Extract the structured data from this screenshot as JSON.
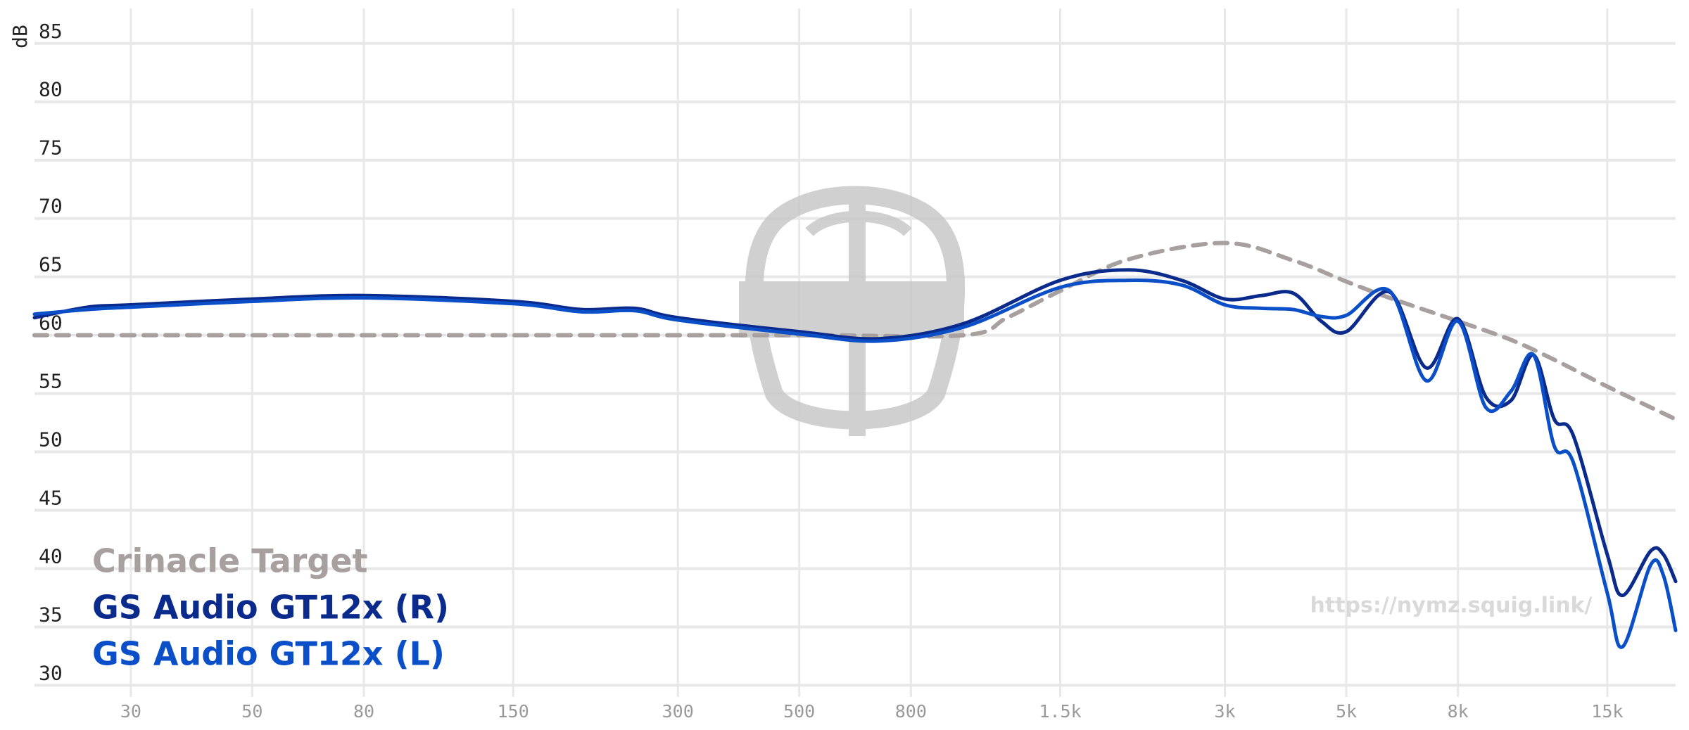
{
  "chart_data": {
    "type": "line",
    "y_label": "dB",
    "watermark": "https://nymz.squig.link/",
    "xscale": "log",
    "grid": true,
    "legend": "bottom-left",
    "xlim": [
      20,
      20000
    ],
    "ylim": [
      29,
      88
    ],
    "xticks": [
      30,
      50,
      80,
      150,
      300,
      500,
      800,
      {
        "value": 1500,
        "label": "1.5k"
      },
      {
        "value": 3000,
        "label": "3k"
      },
      {
        "value": 5000,
        "label": "5k"
      },
      {
        "value": 8000,
        "label": "8k"
      },
      {
        "value": 15000,
        "label": "15k"
      }
    ],
    "yticks": [
      30,
      35,
      40,
      45,
      50,
      55,
      60,
      65,
      70,
      75,
      80,
      85
    ],
    "series": [
      {
        "name": "Crinacle Target",
        "color": "#a89f9f",
        "dashed": true,
        "x": [
          20,
          100,
          500,
          1000,
          1200,
          1500,
          2000,
          3000,
          4000,
          5000,
          6000,
          8000,
          10000,
          12000,
          15000,
          20000
        ],
        "y": [
          60,
          60,
          60,
          60,
          61.5,
          63.8,
          66.5,
          67.9,
          66.4,
          64.6,
          63.2,
          61.2,
          59.6,
          57.9,
          55.6,
          52.8
        ]
      },
      {
        "name": "GS Audio GT12x (R)",
        "color": "#0a2a8c",
        "dashed": false,
        "x": [
          20,
          25,
          30,
          50,
          80,
          150,
          200,
          250,
          300,
          500,
          700,
          1000,
          1500,
          2000,
          2500,
          3000,
          3500,
          4000,
          4500,
          5000,
          6000,
          7000,
          8000,
          9000,
          10000,
          11000,
          12000,
          13000,
          15000,
          16000,
          18000,
          19000,
          20000
        ],
        "y": [
          61.5,
          62.4,
          62.6,
          63.1,
          63.4,
          62.9,
          62.2,
          62.3,
          61.5,
          60.3,
          59.7,
          61.0,
          64.7,
          65.6,
          64.7,
          63.1,
          63.4,
          63.6,
          61.2,
          60.3,
          63.7,
          57.2,
          61.4,
          54.7,
          54.4,
          58.3,
          52.8,
          51.4,
          41.2,
          37.7,
          41.5,
          41.2,
          38.9
        ]
      },
      {
        "name": "GS Audio GT12x (L)",
        "color": "#0a4fc8",
        "dashed": false,
        "x": [
          20,
          25,
          30,
          50,
          80,
          150,
          200,
          250,
          300,
          500,
          700,
          1000,
          1500,
          2000,
          2500,
          3000,
          3500,
          4000,
          4500,
          5000,
          6000,
          7000,
          8000,
          9000,
          10000,
          11000,
          12000,
          13000,
          15000,
          16000,
          18000,
          19000,
          20000
        ],
        "y": [
          61.8,
          62.2,
          62.4,
          62.9,
          63.2,
          62.7,
          62.0,
          62.1,
          61.3,
          60.1,
          59.5,
          60.7,
          64.1,
          64.7,
          64.3,
          62.6,
          62.3,
          62.2,
          61.6,
          61.7,
          63.8,
          56.1,
          61.2,
          53.8,
          55.2,
          58.3,
          50.5,
          49.1,
          37.9,
          33.3,
          40.3,
          39.4,
          34.7
        ]
      }
    ]
  }
}
